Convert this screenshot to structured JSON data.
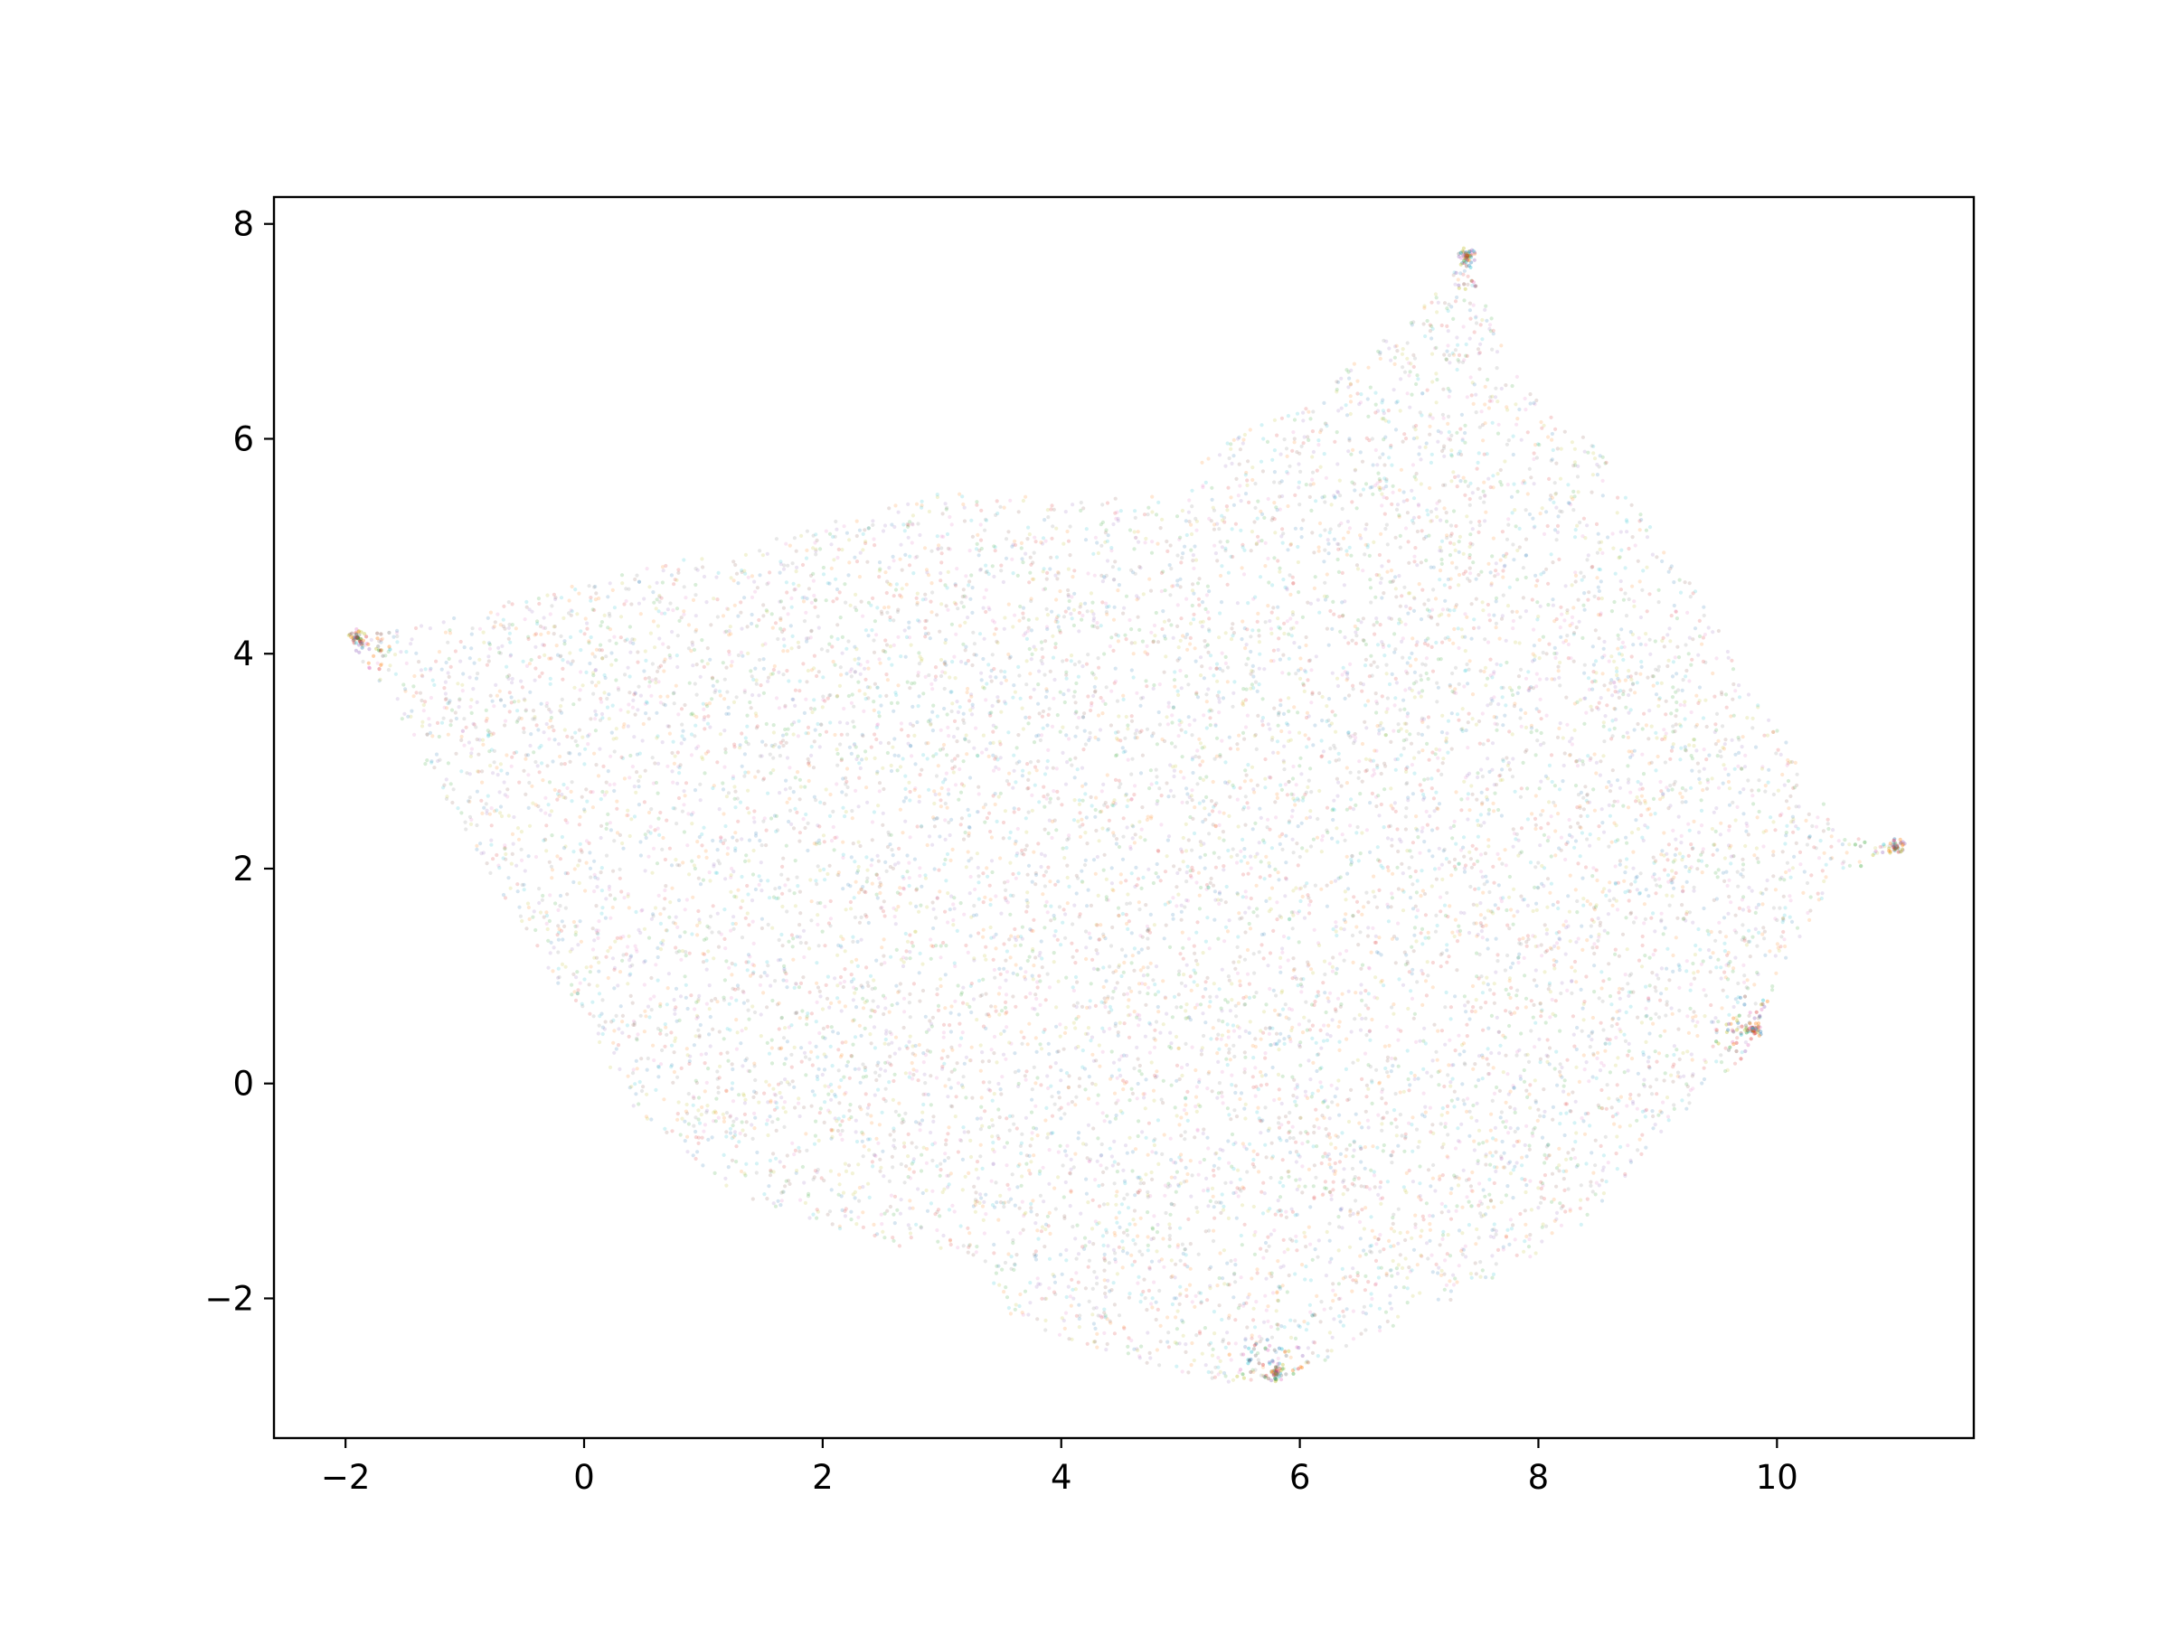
{
  "chart_data": {
    "type": "scatter",
    "title": "",
    "xlabel": "",
    "ylabel": "",
    "xlim": [
      -2.6,
      11.65
    ],
    "ylim": [
      -3.3,
      8.25
    ],
    "x_ticks": [
      -2,
      0,
      2,
      4,
      6,
      8,
      10
    ],
    "y_ticks": [
      -2,
      0,
      2,
      4,
      6,
      8
    ],
    "x_tick_labels": [
      "−2",
      "0",
      "2",
      "4",
      "6",
      "8",
      "10"
    ],
    "y_tick_labels": [
      "−2",
      "0",
      "2",
      "4",
      "6",
      "8"
    ],
    "grid": false,
    "legend": "none",
    "marker_alpha": 0.18,
    "palette": [
      "#1f77b4",
      "#ff7f0e",
      "#2ca02c",
      "#d62728",
      "#9467bd",
      "#8c564b",
      "#e377c2",
      "#7f7f7f",
      "#bcbd22",
      "#17becf"
    ],
    "point_cloud_outline": [
      [
        -1.9,
        4.15
      ],
      [
        -0.2,
        4.6
      ],
      [
        1.5,
        5.05
      ],
      [
        3.0,
        5.5
      ],
      [
        4.4,
        5.45
      ],
      [
        5.0,
        5.5
      ],
      [
        5.2,
        5.85
      ],
      [
        6.1,
        6.4
      ],
      [
        7.0,
        7.2
      ],
      [
        7.4,
        7.7
      ],
      [
        7.8,
        6.6
      ],
      [
        8.5,
        5.9
      ],
      [
        9.2,
        4.8
      ],
      [
        10.0,
        3.3
      ],
      [
        10.6,
        2.3
      ],
      [
        11.0,
        2.2
      ],
      [
        10.5,
        1.9
      ],
      [
        10.1,
        1.2
      ],
      [
        9.7,
        0.2
      ],
      [
        9.0,
        -0.5
      ],
      [
        8.4,
        -1.3
      ],
      [
        7.5,
        -1.9
      ],
      [
        6.7,
        -2.3
      ],
      [
        6.0,
        -2.7
      ],
      [
        5.3,
        -2.8
      ],
      [
        4.6,
        -2.6
      ],
      [
        3.6,
        -2.2
      ],
      [
        3.3,
        -1.6
      ],
      [
        2.5,
        -1.5
      ],
      [
        1.2,
        -1.0
      ],
      [
        0.4,
        -0.2
      ],
      [
        -0.7,
        1.8
      ],
      [
        -1.3,
        2.9
      ],
      [
        -1.95,
        4.1
      ]
    ],
    "dense_tips": [
      {
        "x": -1.9,
        "y": 4.15
      },
      {
        "x": 7.4,
        "y": 7.7
      },
      {
        "x": 11.0,
        "y": 2.2
      },
      {
        "x": 9.8,
        "y": 0.5
      },
      {
        "x": 5.8,
        "y": -2.7
      }
    ]
  }
}
